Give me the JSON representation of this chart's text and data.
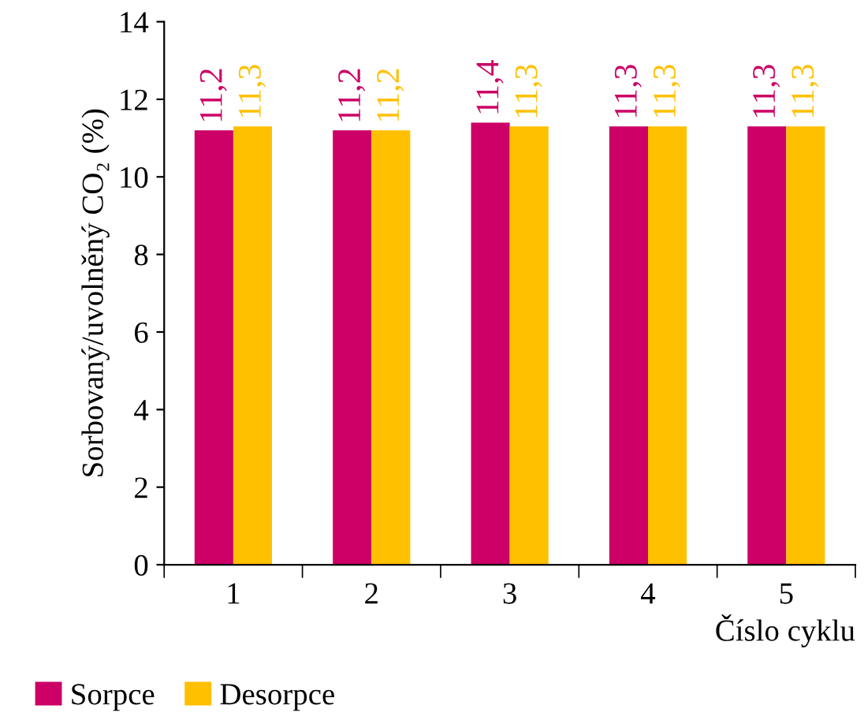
{
  "chart_data": {
    "type": "bar",
    "ylabel": "Sorbovaný/uvolněný CO₂ (%)",
    "xlabel": "Číslo cyklu",
    "categories": [
      "1",
      "2",
      "3",
      "4",
      "5"
    ],
    "series": [
      {
        "name": "Sorpce",
        "color": "#cc0066",
        "values": [
          11.2,
          11.2,
          11.4,
          11.3,
          11.3
        ],
        "value_labels": [
          "11,2",
          "11,2",
          "11,4",
          "11,3",
          "11,3"
        ]
      },
      {
        "name": "Desorpce",
        "color": "#ffc000",
        "values": [
          11.3,
          11.2,
          11.3,
          11.3,
          11.3
        ],
        "value_labels": [
          "11,3",
          "11,2",
          "11,3",
          "11,3",
          "11,3"
        ]
      }
    ],
    "ylim": [
      0,
      14
    ],
    "yticks": [
      0,
      2,
      4,
      6,
      8,
      10,
      12,
      14
    ],
    "grid": false,
    "legend": "bottom left"
  }
}
